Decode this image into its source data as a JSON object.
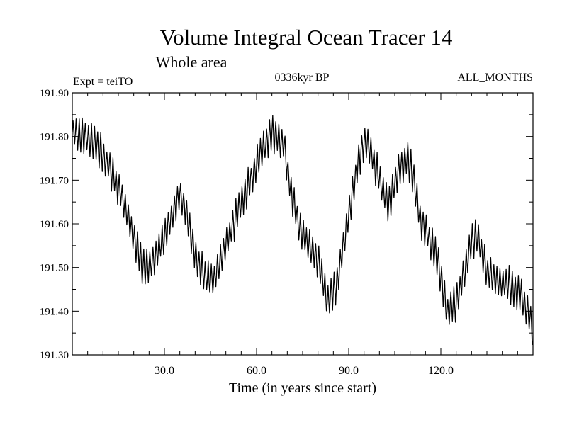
{
  "chart_data": {
    "type": "line",
    "title": "Volume Integral Ocean Tracer 14",
    "subtitle": "Whole area",
    "left_label": "Expt = teiTO",
    "center_label": "0336kyr BP",
    "right_label": "ALL_MONTHS",
    "xlabel": "Time (in years since start)",
    "ylabel": "",
    "xlim": [
      0,
      150
    ],
    "ylim": [
      191.3,
      191.9
    ],
    "grid": false,
    "line_color": "#000000",
    "x_ticks": [
      30,
      60,
      90,
      120
    ],
    "x_tick_labels": [
      "30.0",
      "60.0",
      "90.0",
      "120.0"
    ],
    "y_ticks": [
      191.3,
      191.4,
      191.5,
      191.6,
      191.7,
      191.8,
      191.9
    ],
    "y_tick_labels": [
      "191.30",
      "191.40",
      "191.50",
      "191.60",
      "191.70",
      "191.80",
      "191.90"
    ],
    "series": [
      {
        "name": "Volume Integral Ocean Tracer 14",
        "envelope_x": [
          0,
          4,
          8,
          12,
          16,
          20,
          23,
          26,
          30,
          33,
          35,
          37,
          40,
          43,
          46,
          50,
          54,
          58,
          62,
          65,
          67,
          69,
          71,
          74,
          77,
          80,
          83,
          86,
          90,
          93,
          95,
          97,
          100,
          103,
          106,
          109,
          111,
          113,
          116,
          119,
          122,
          125,
          128,
          130,
          132,
          135,
          138,
          142,
          146,
          148,
          149.5,
          150
        ],
        "envelope_y": [
          191.81,
          191.8,
          191.78,
          191.73,
          191.67,
          191.57,
          191.5,
          191.51,
          191.57,
          191.63,
          191.67,
          191.63,
          191.53,
          191.48,
          191.47,
          191.55,
          191.63,
          191.7,
          191.77,
          191.81,
          191.8,
          191.78,
          191.68,
          191.59,
          191.55,
          191.52,
          191.42,
          191.46,
          191.62,
          191.74,
          191.79,
          191.77,
          191.7,
          191.64,
          191.72,
          191.75,
          191.71,
          191.62,
          191.57,
          191.52,
          191.4,
          191.42,
          191.5,
          191.56,
          191.57,
          191.49,
          191.47,
          191.46,
          191.44,
          191.4,
          191.38,
          191.33
        ],
        "oscillation_period_years": 1,
        "oscillation_amplitude": 0.035
      }
    ]
  }
}
